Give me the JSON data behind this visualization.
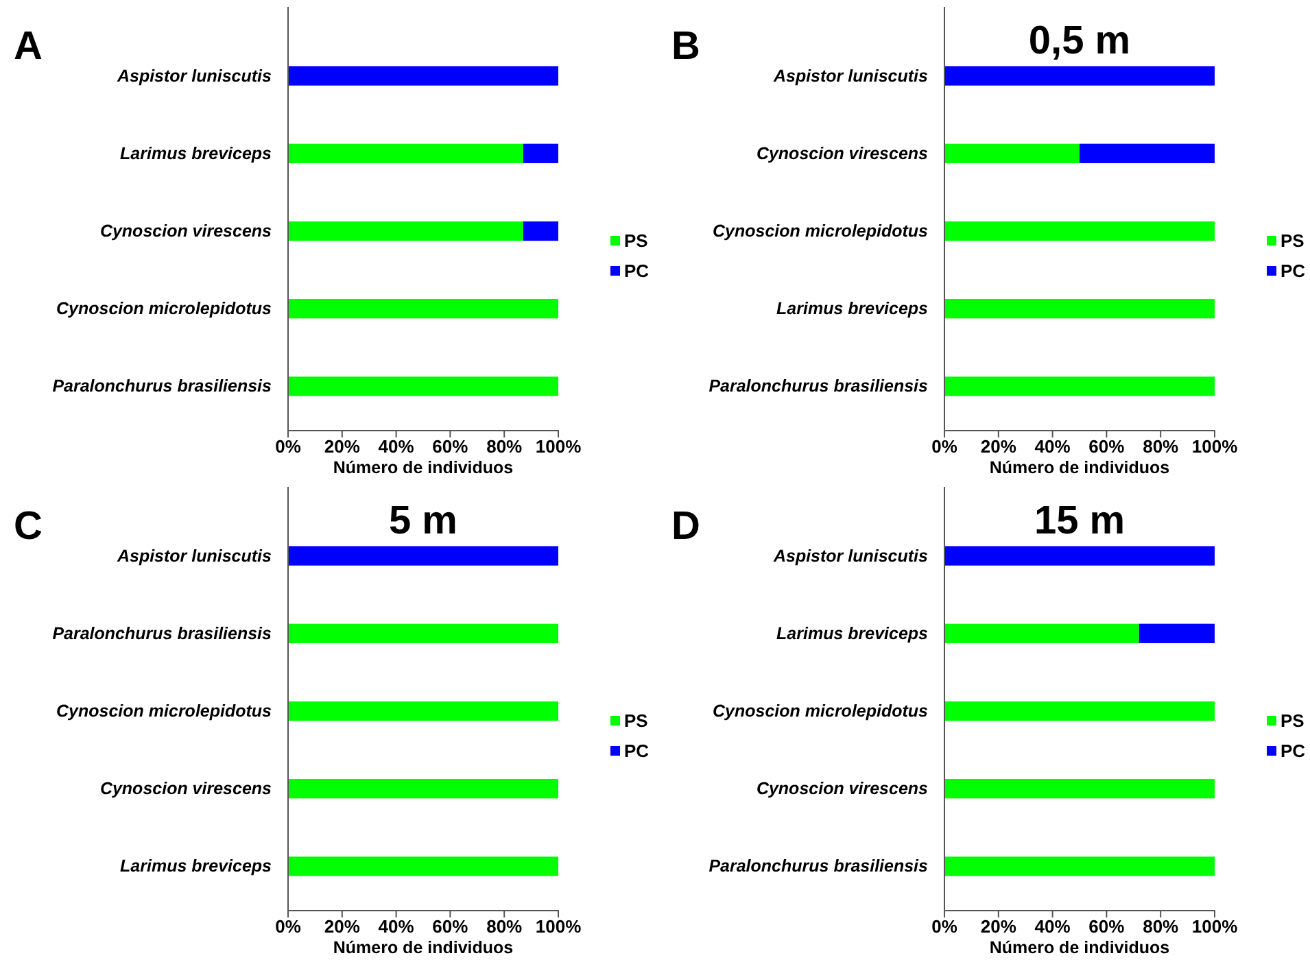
{
  "chart_data": [
    {
      "type": "bar",
      "orientation": "horizontal",
      "stacked": true,
      "annotations": [
        "A"
      ],
      "xlabel": "Número de individuos",
      "categories": [
        "Aspistor luniscutis",
        "Larimus breviceps",
        "Cynoscion virescens",
        "Cynoscion microlepidotus",
        "Paralonchurus brasiliensis"
      ],
      "series": [
        {
          "name": "PS",
          "color": "#00ff00",
          "values": [
            0,
            87,
            87,
            100,
            100
          ]
        },
        {
          "name": "PC",
          "color": "#0000ff",
          "values": [
            100,
            13,
            13,
            0,
            0
          ]
        }
      ],
      "xlim": [
        0,
        100
      ],
      "xticks": [
        {
          "value": 0,
          "label": "0%"
        },
        {
          "value": 20,
          "label": "20%"
        },
        {
          "value": 40,
          "label": "40%"
        },
        {
          "value": 60,
          "label": "60%"
        },
        {
          "value": 80,
          "label": "80%"
        },
        {
          "value": 100,
          "label": "100%"
        }
      ],
      "grid": false,
      "legend": "right"
    },
    {
      "type": "bar",
      "orientation": "horizontal",
      "stacked": true,
      "title": "0,5 m",
      "annotations": [
        "B"
      ],
      "xlabel": "Número de individuos",
      "categories": [
        "Aspistor luniscutis",
        "Cynoscion virescens",
        "Cynoscion microlepidotus",
        "Larimus breviceps",
        "Paralonchurus brasiliensis"
      ],
      "series": [
        {
          "name": "PS",
          "color": "#00ff00",
          "values": [
            0,
            50,
            100,
            100,
            100
          ]
        },
        {
          "name": "PC",
          "color": "#0000ff",
          "values": [
            100,
            50,
            0,
            0,
            0
          ]
        }
      ],
      "xlim": [
        0,
        100
      ],
      "xticks": [
        {
          "value": 0,
          "label": "0%"
        },
        {
          "value": 20,
          "label": "20%"
        },
        {
          "value": 40,
          "label": "40%"
        },
        {
          "value": 60,
          "label": "60%"
        },
        {
          "value": 80,
          "label": "80%"
        },
        {
          "value": 100,
          "label": "100%"
        }
      ],
      "grid": false,
      "legend": "right"
    },
    {
      "type": "bar",
      "orientation": "horizontal",
      "stacked": true,
      "title": "5 m",
      "annotations": [
        "C"
      ],
      "xlabel": "Número de individuos",
      "categories": [
        "Aspistor luniscutis",
        "Paralonchurus brasiliensis",
        "Cynoscion microlepidotus",
        "Cynoscion virescens",
        "Larimus breviceps"
      ],
      "series": [
        {
          "name": "PS",
          "color": "#00ff00",
          "values": [
            0,
            100,
            100,
            100,
            100
          ]
        },
        {
          "name": "PC",
          "color": "#0000ff",
          "values": [
            100,
            0,
            0,
            0,
            0
          ]
        }
      ],
      "xlim": [
        0,
        100
      ],
      "xticks": [
        {
          "value": 0,
          "label": "0%"
        },
        {
          "value": 20,
          "label": "20%"
        },
        {
          "value": 40,
          "label": "40%"
        },
        {
          "value": 60,
          "label": "60%"
        },
        {
          "value": 80,
          "label": "80%"
        },
        {
          "value": 100,
          "label": "100%"
        }
      ],
      "grid": false,
      "legend": "right"
    },
    {
      "type": "bar",
      "orientation": "horizontal",
      "stacked": true,
      "title": "15 m",
      "annotations": [
        "D"
      ],
      "xlabel": "Número de individuos",
      "categories": [
        "Aspistor luniscutis",
        "Larimus breviceps",
        "Cynoscion microlepidotus",
        "Cynoscion virescens",
        "Paralonchurus brasiliensis"
      ],
      "series": [
        {
          "name": "PS",
          "color": "#00ff00",
          "values": [
            0,
            72,
            100,
            100,
            100
          ]
        },
        {
          "name": "PC",
          "color": "#0000ff",
          "values": [
            100,
            28,
            0,
            0,
            0
          ]
        }
      ],
      "xlim": [
        0,
        100
      ],
      "xticks": [
        {
          "value": 0,
          "label": "0%"
        },
        {
          "value": 20,
          "label": "20%"
        },
        {
          "value": 40,
          "label": "40%"
        },
        {
          "value": 60,
          "label": "60%"
        },
        {
          "value": 80,
          "label": "80%"
        },
        {
          "value": 100,
          "label": "100%"
        }
      ],
      "grid": false,
      "legend": "right"
    }
  ]
}
